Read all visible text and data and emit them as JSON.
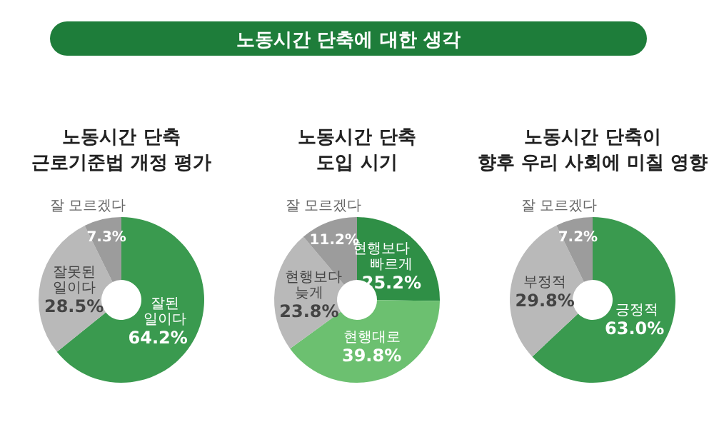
{
  "chart_data": [
    {
      "type": "other",
      "title": "노동시간 단축에 대한 생각",
      "color": "#1e7d3a"
    },
    {
      "type": "donut",
      "title": "노동시간 단축\n근로기준법 개정 평가",
      "categories": [
        "잘된 일이다",
        "잘못된 일이다",
        "잘 모르겠다"
      ],
      "values": [
        64.2,
        28.5,
        7.3
      ],
      "colors": [
        "#3a9a4f",
        "#b9b9b9",
        "#9c9c9c"
      ],
      "value_labels": [
        "64.2%",
        "28.5%",
        "7.3%"
      ]
    },
    {
      "type": "donut",
      "title": "노동시간 단축\n도입 시기",
      "categories": [
        "현행보다 빠르게",
        "현행대로",
        "현행보다 늦게",
        "잘 모르겠다"
      ],
      "values": [
        25.2,
        39.8,
        23.8,
        11.2
      ],
      "colors": [
        "#2f8f46",
        "#6cc070",
        "#b9b9b9",
        "#9c9c9c"
      ],
      "value_labels": [
        "25.2%",
        "39.8%",
        "23.8%",
        "11.2%"
      ]
    },
    {
      "type": "donut",
      "title": "노동시간 단축이\n향후 우리 사회에 미칠 영향",
      "categories": [
        "긍정적",
        "부정적",
        "잘 모르겠다"
      ],
      "values": [
        63.0,
        29.8,
        7.2
      ],
      "colors": [
        "#3a9a4f",
        "#b9b9b9",
        "#9c9c9c"
      ],
      "value_labels": [
        "63.0%",
        "29.8%",
        "7.2%"
      ]
    }
  ]
}
